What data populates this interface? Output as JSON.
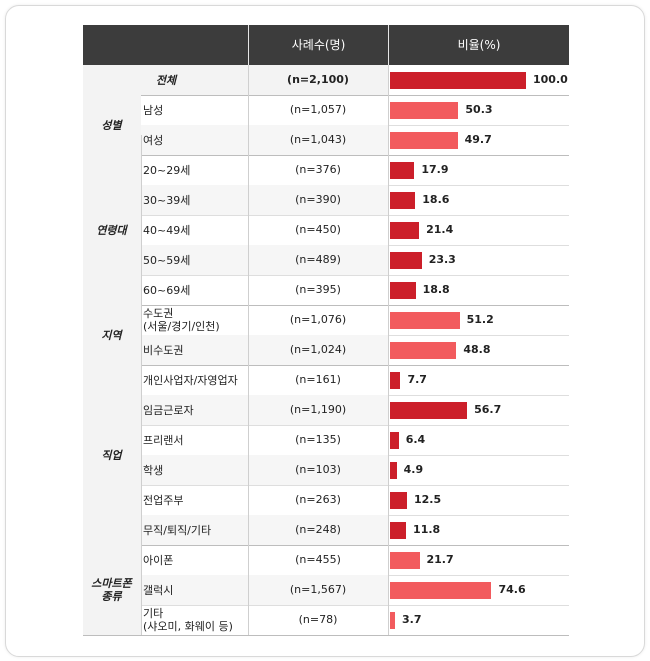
{
  "header": {
    "col_count": "사례수(명)",
    "col_ratio": "비율(%)"
  },
  "colors": {
    "header_bg": "#3c3c3c",
    "bar_dark": "#cc1f2a",
    "bar_light": "#f25b5e",
    "group_bg": "#f3f3f3"
  },
  "chart_data": {
    "type": "bar",
    "orientation": "horizontal",
    "xlim": [
      0,
      100
    ],
    "groups": [
      {
        "name": "전체",
        "shade": "dark",
        "rows": [
          {
            "label": "",
            "n": "(n=2,100)",
            "value": 100.0,
            "value_text": "100.0"
          }
        ]
      },
      {
        "name": "성별",
        "shade": "light",
        "rows": [
          {
            "label": "남성",
            "n": "(n=1,057)",
            "value": 50.3,
            "value_text": "50.3"
          },
          {
            "label": "여성",
            "n": "(n=1,043)",
            "value": 49.7,
            "value_text": "49.7"
          }
        ]
      },
      {
        "name": "연령대",
        "shade": "dark",
        "rows": [
          {
            "label": "20~29세",
            "n": "(n=376)",
            "value": 17.9,
            "value_text": "17.9"
          },
          {
            "label": "30~39세",
            "n": "(n=390)",
            "value": 18.6,
            "value_text": "18.6"
          },
          {
            "label": "40~49세",
            "n": "(n=450)",
            "value": 21.4,
            "value_text": "21.4"
          },
          {
            "label": "50~59세",
            "n": "(n=489)",
            "value": 23.3,
            "value_text": "23.3"
          },
          {
            "label": "60~69세",
            "n": "(n=395)",
            "value": 18.8,
            "value_text": "18.8"
          }
        ]
      },
      {
        "name": "지역",
        "shade": "light",
        "rows": [
          {
            "label": "수도권\n(서울/경기/인천)",
            "n": "(n=1,076)",
            "value": 51.2,
            "value_text": "51.2"
          },
          {
            "label": "비수도권",
            "n": "(n=1,024)",
            "value": 48.8,
            "value_text": "48.8"
          }
        ]
      },
      {
        "name": "직업",
        "shade": "dark",
        "rows": [
          {
            "label": "개인사업자/자영업자",
            "n": "(n=161)",
            "value": 7.7,
            "value_text": "7.7"
          },
          {
            "label": "임금근로자",
            "n": "(n=1,190)",
            "value": 56.7,
            "value_text": "56.7"
          },
          {
            "label": "프리랜서",
            "n": "(n=135)",
            "value": 6.4,
            "value_text": "6.4"
          },
          {
            "label": "학생",
            "n": "(n=103)",
            "value": 4.9,
            "value_text": "4.9"
          },
          {
            "label": "전업주부",
            "n": "(n=263)",
            "value": 12.5,
            "value_text": "12.5"
          },
          {
            "label": "무직/퇴직/기타",
            "n": "(n=248)",
            "value": 11.8,
            "value_text": "11.8"
          }
        ]
      },
      {
        "name": "스마트폰\n종류",
        "shade": "light",
        "rows": [
          {
            "label": "아이폰",
            "n": "(n=455)",
            "value": 21.7,
            "value_text": "21.7"
          },
          {
            "label": "갤럭시",
            "n": "(n=1,567)",
            "value": 74.6,
            "value_text": "74.6"
          },
          {
            "label": "기타\n(샤오미, 화웨이 등)",
            "n": "(n=78)",
            "value": 3.7,
            "value_text": "3.7"
          }
        ]
      }
    ]
  }
}
